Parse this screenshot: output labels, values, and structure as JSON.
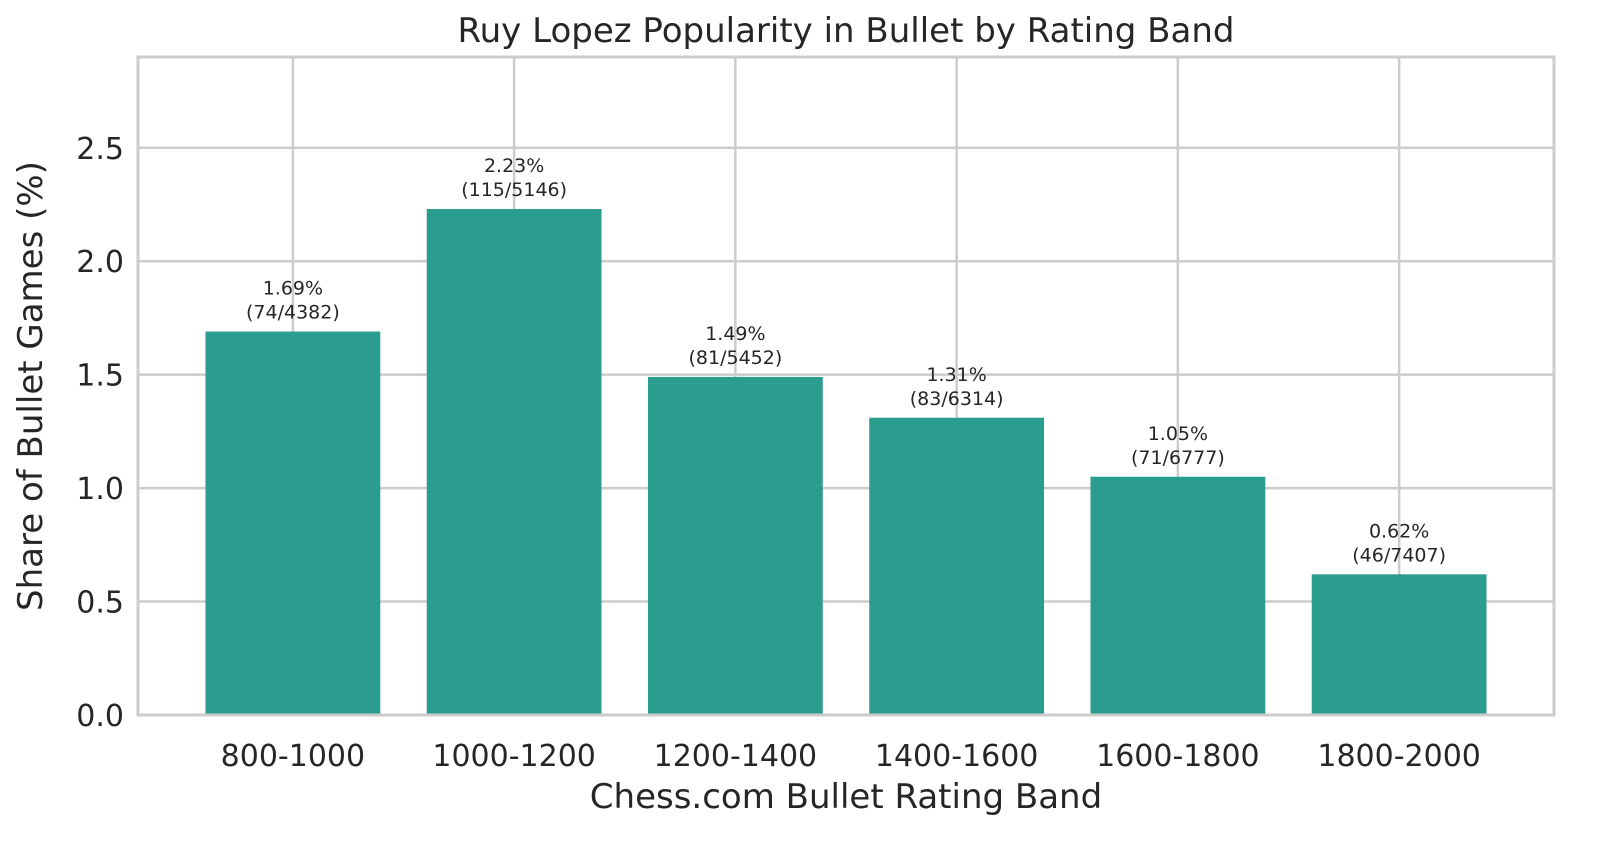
{
  "chart_data": {
    "type": "bar",
    "title": "Ruy Lopez Popularity in Bullet by Rating Band",
    "xlabel": "Chess.com Bullet Rating Band",
    "ylabel": "Share of Bullet Games (%)",
    "categories": [
      "800-1000",
      "1000-1200",
      "1200-1400",
      "1400-1600",
      "1600-1800",
      "1800-2000"
    ],
    "values": [
      1.69,
      2.23,
      1.49,
      1.31,
      1.05,
      0.62
    ],
    "data_labels": [
      [
        "1.69%",
        "(74/4382)"
      ],
      [
        "2.23%",
        "(115/5146)"
      ],
      [
        "1.49%",
        "(81/5452)"
      ],
      [
        "1.31%",
        "(83/6314)"
      ],
      [
        "1.05%",
        "(71/6777)"
      ],
      [
        "0.62%",
        "(46/7407)"
      ]
    ],
    "yticks": [
      "0.0",
      "0.5",
      "1.0",
      "1.5",
      "2.0",
      "2.5"
    ],
    "ylim": [
      0,
      2.9
    ],
    "grid": true,
    "bar_color": "#2a9d8f"
  }
}
